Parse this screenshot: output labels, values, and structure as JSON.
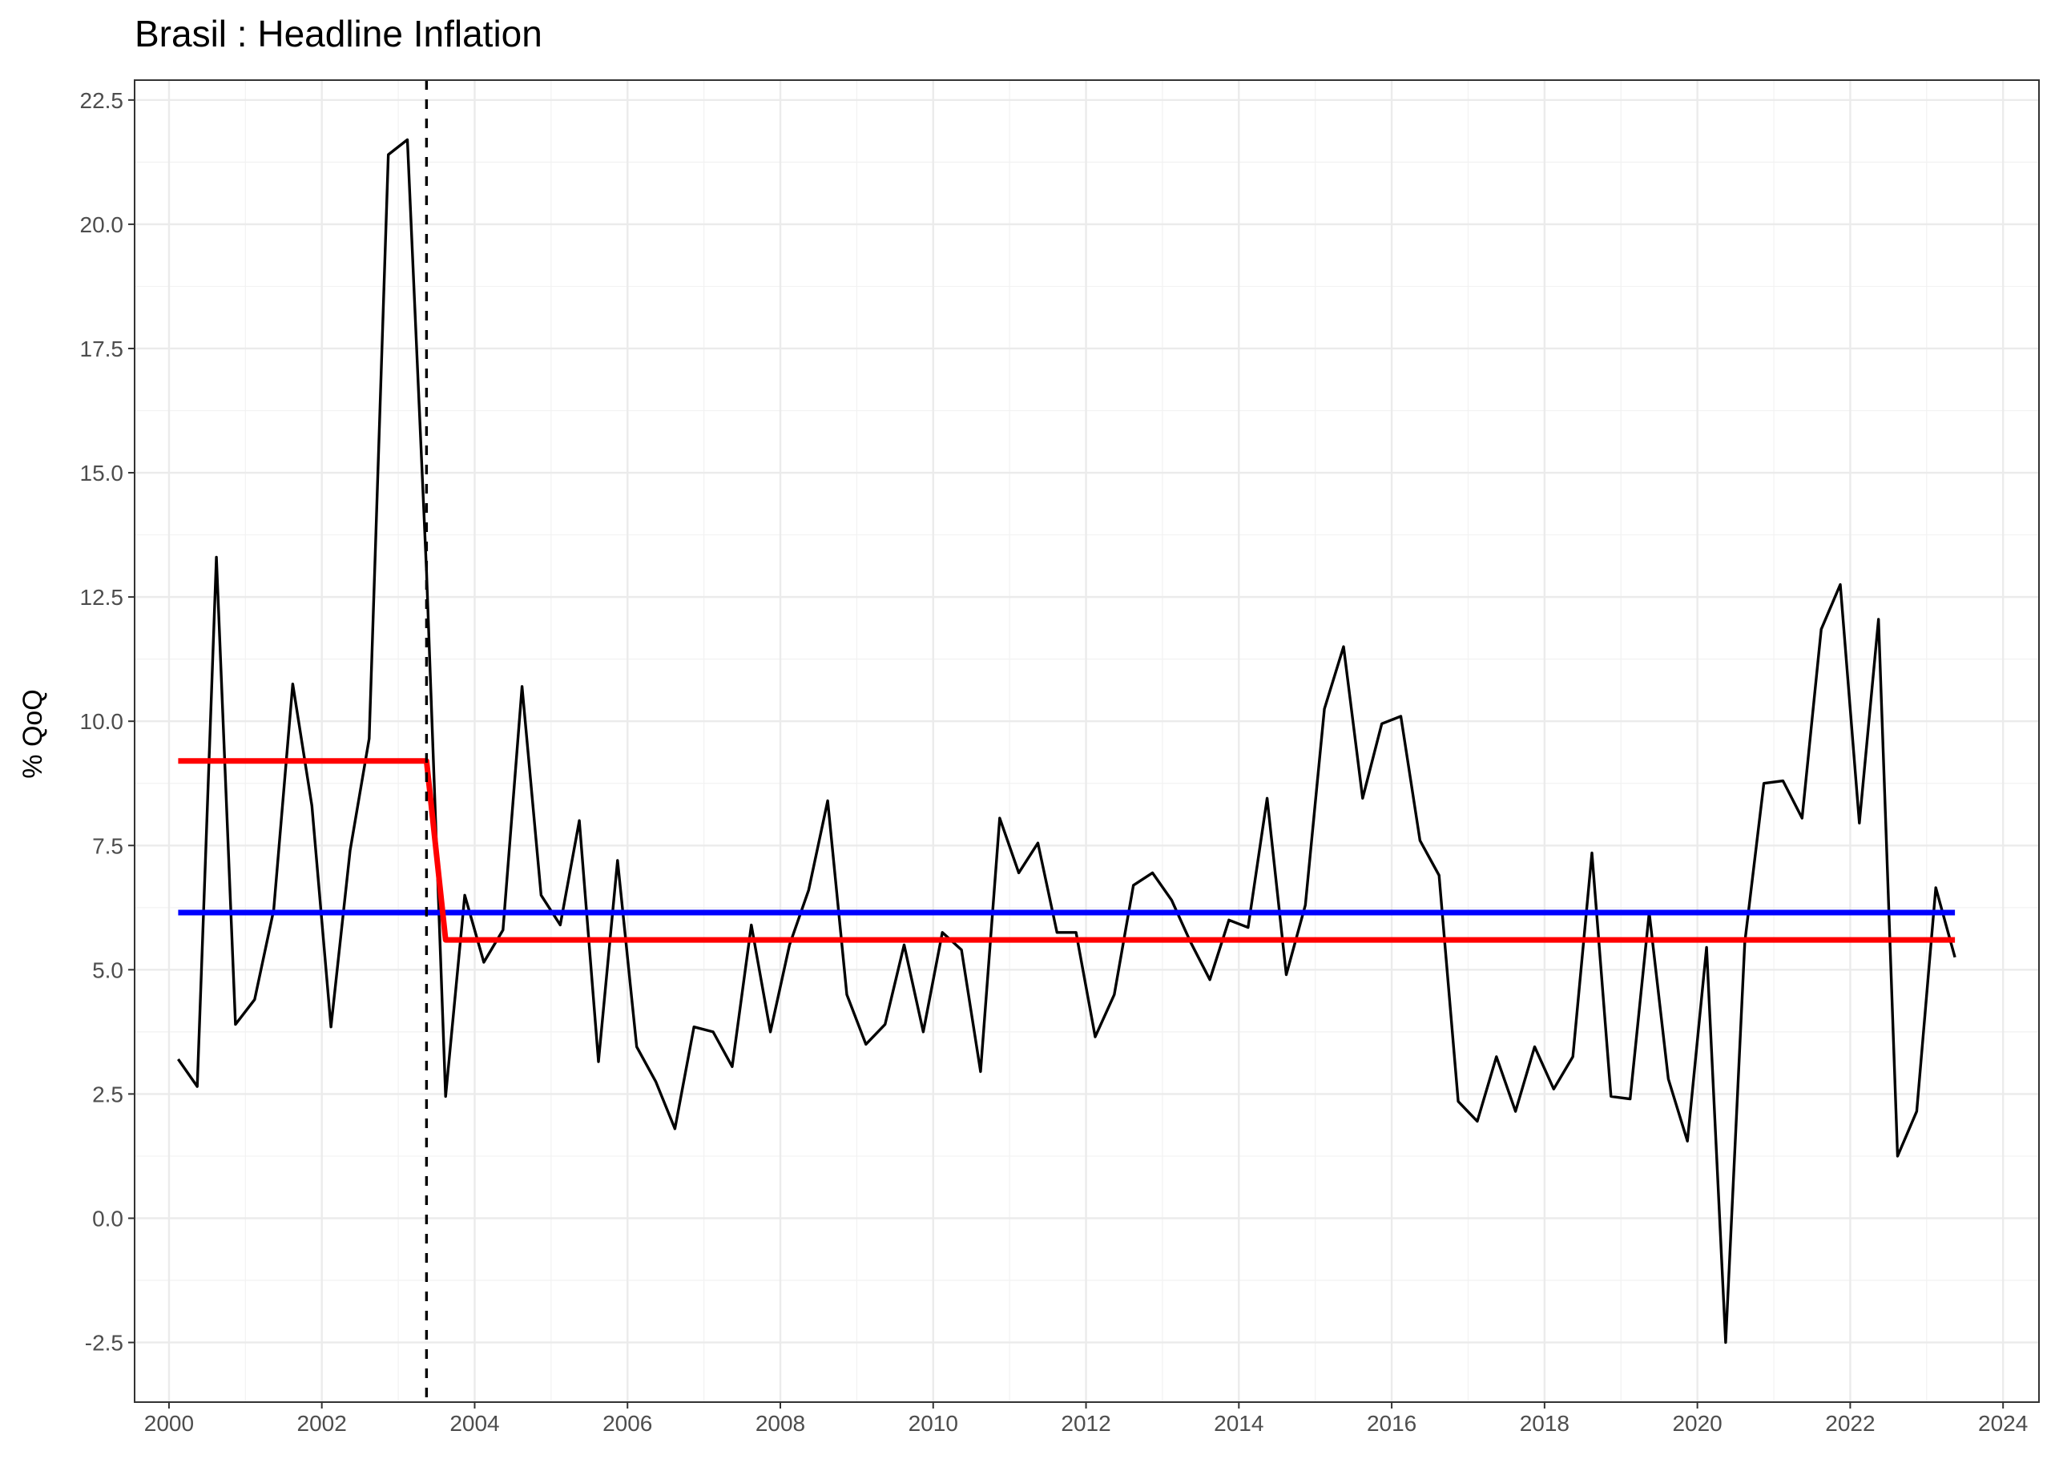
{
  "chart_data": {
    "type": "line",
    "title": "Brasil : Headline Inflation",
    "xlabel": "",
    "ylabel": "% QoQ",
    "xlim": [
      1999.55,
      2024.47
    ],
    "ylim": [
      -3.7,
      22.9
    ],
    "x_ticks": [
      "2000",
      "2002",
      "2004",
      "2006",
      "2008",
      "2010",
      "2012",
      "2014",
      "2016",
      "2018",
      "2020",
      "2022",
      "2024"
    ],
    "y_ticks": [
      "-2.5",
      "0.0",
      "2.5",
      "5.0",
      "7.5",
      "10.0",
      "12.5",
      "15.0",
      "17.5",
      "20.0",
      "22.5"
    ],
    "grid": true,
    "legend": "none",
    "colors": {
      "inflation": "#000000",
      "full_mean": "#0000ff",
      "break_mean": "#ff0000",
      "break_line": "#000000"
    },
    "series": [
      {
        "role": "inflation",
        "points": [
          [
            2000.12,
            3.2
          ],
          [
            2000.37,
            2.65
          ],
          [
            2000.62,
            13.3
          ],
          [
            2000.87,
            3.9
          ],
          [
            2001.12,
            4.4
          ],
          [
            2001.37,
            6.2
          ],
          [
            2001.62,
            10.75
          ],
          [
            2001.87,
            8.3
          ],
          [
            2002.12,
            3.85
          ],
          [
            2002.37,
            7.4
          ],
          [
            2002.62,
            9.65
          ],
          [
            2002.87,
            21.4
          ],
          [
            2003.12,
            21.7
          ],
          [
            2003.37,
            13.0
          ],
          [
            2003.62,
            2.45
          ],
          [
            2003.87,
            6.5
          ],
          [
            2004.12,
            5.15
          ],
          [
            2004.37,
            5.8
          ],
          [
            2004.62,
            10.7
          ],
          [
            2004.87,
            6.5
          ],
          [
            2005.12,
            5.9
          ],
          [
            2005.37,
            8.0
          ],
          [
            2005.62,
            3.15
          ],
          [
            2005.87,
            7.2
          ],
          [
            2006.12,
            3.45
          ],
          [
            2006.37,
            2.75
          ],
          [
            2006.62,
            1.8
          ],
          [
            2006.87,
            3.85
          ],
          [
            2007.12,
            3.75
          ],
          [
            2007.37,
            3.05
          ],
          [
            2007.62,
            5.9
          ],
          [
            2007.87,
            3.75
          ],
          [
            2008.12,
            5.5
          ],
          [
            2008.37,
            6.6
          ],
          [
            2008.62,
            8.4
          ],
          [
            2008.87,
            4.5
          ],
          [
            2009.12,
            3.5
          ],
          [
            2009.37,
            3.9
          ],
          [
            2009.62,
            5.5
          ],
          [
            2009.87,
            3.75
          ],
          [
            2010.12,
            5.75
          ],
          [
            2010.37,
            5.4
          ],
          [
            2010.62,
            2.95
          ],
          [
            2010.87,
            8.05
          ],
          [
            2011.12,
            6.95
          ],
          [
            2011.37,
            7.55
          ],
          [
            2011.62,
            5.75
          ],
          [
            2011.87,
            5.75
          ],
          [
            2012.12,
            3.65
          ],
          [
            2012.37,
            4.5
          ],
          [
            2012.62,
            6.7
          ],
          [
            2012.87,
            6.95
          ],
          [
            2013.12,
            6.4
          ],
          [
            2013.37,
            5.55
          ],
          [
            2013.62,
            4.8
          ],
          [
            2013.87,
            6.0
          ],
          [
            2014.12,
            5.85
          ],
          [
            2014.37,
            8.45
          ],
          [
            2014.62,
            4.9
          ],
          [
            2014.87,
            6.3
          ],
          [
            2015.12,
            10.25
          ],
          [
            2015.37,
            11.5
          ],
          [
            2015.62,
            8.45
          ],
          [
            2015.87,
            9.95
          ],
          [
            2016.12,
            10.1
          ],
          [
            2016.37,
            7.6
          ],
          [
            2016.62,
            6.9
          ],
          [
            2016.87,
            2.35
          ],
          [
            2017.12,
            1.95
          ],
          [
            2017.37,
            3.25
          ],
          [
            2017.62,
            2.15
          ],
          [
            2017.87,
            3.45
          ],
          [
            2018.12,
            2.6
          ],
          [
            2018.37,
            3.25
          ],
          [
            2018.62,
            7.35
          ],
          [
            2018.87,
            2.45
          ],
          [
            2019.12,
            2.4
          ],
          [
            2019.37,
            6.15
          ],
          [
            2019.62,
            2.8
          ],
          [
            2019.87,
            1.55
          ],
          [
            2020.12,
            5.45
          ],
          [
            2020.37,
            -2.5
          ],
          [
            2020.62,
            5.55
          ],
          [
            2020.87,
            8.75
          ],
          [
            2021.12,
            8.8
          ],
          [
            2021.37,
            8.05
          ],
          [
            2021.62,
            11.85
          ],
          [
            2021.87,
            12.75
          ],
          [
            2022.12,
            7.95
          ],
          [
            2022.37,
            12.05
          ],
          [
            2022.62,
            1.25
          ],
          [
            2022.87,
            2.15
          ],
          [
            2023.12,
            6.65
          ],
          [
            2023.37,
            5.25
          ]
        ]
      },
      {
        "role": "full_mean",
        "points": [
          [
            2000.12,
            6.15
          ],
          [
            2023.37,
            6.15
          ]
        ]
      },
      {
        "role": "break_mean",
        "points": [
          [
            2000.12,
            9.2
          ],
          [
            2003.37,
            9.2
          ],
          [
            2003.62,
            5.6
          ],
          [
            2023.37,
            5.6
          ]
        ]
      }
    ],
    "break_x": 2003.37
  }
}
